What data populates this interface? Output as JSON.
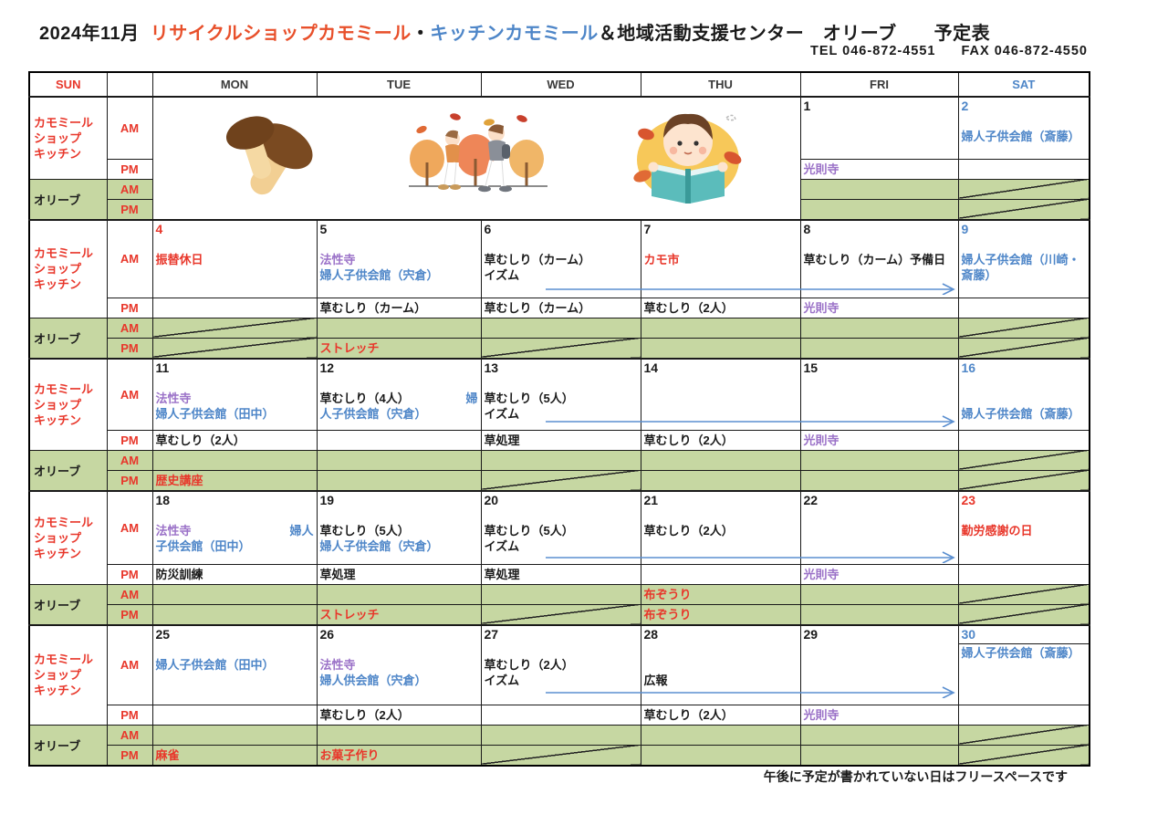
{
  "palette": {
    "red": "#e8372b",
    "orange_title": "#e8502b",
    "blue": "#4e86c8",
    "purple": "#9b72c8",
    "green_bg": "#c6d7a2",
    "arrow_blue": "#5b8fd0"
  },
  "title": {
    "month": "2024年11月",
    "shop": "リサイクルショップカモミール",
    "dot": "・",
    "kitchen": "キッチンカモミール",
    "rest": "＆地域活動支援センター　オリーブ　　予定表"
  },
  "contact": {
    "tel": "TEL 046-872-4551",
    "fax": "FAX 046-872-4550"
  },
  "header": {
    "days": [
      "SUN",
      "",
      "MON",
      "TUE",
      "WED",
      "THU",
      "FRI",
      "SAT"
    ]
  },
  "labels": {
    "camomile": [
      "カモミール",
      "ショップ",
      "キッチン"
    ],
    "olive": "オリーブ",
    "am": "AM",
    "pm": "PM"
  },
  "footer_note": "午後に予定が書かれていない日はフリースペースです",
  "illustrations": [
    "mushrooms",
    "autumn-walk",
    "reading-child"
  ],
  "weeks": [
    {
      "image_span": true,
      "arrow": false,
      "days": [
        null,
        null,
        null,
        null,
        {
          "num": "1",
          "num_c": "k",
          "am": [],
          "pm": [
            {
              "t": "光則寺",
              "c": "p"
            }
          ],
          "oam": {},
          "opm": {}
        },
        {
          "num": "2",
          "num_c": "b",
          "am": [
            [
              {
                "t": "婦人子供会館（斎藤）",
                "c": "b"
              }
            ]
          ],
          "pm": [],
          "oam": {
            "diag": true
          },
          "opm": {
            "diag": true
          }
        }
      ]
    },
    {
      "image_span": false,
      "arrow": true,
      "days": [
        {
          "num": "4",
          "num_c": "r",
          "am": [
            [
              {
                "t": "振替休日",
                "c": "r"
              }
            ]
          ],
          "pm": [],
          "oam": {
            "diag": true
          },
          "opm": {
            "diag": true
          }
        },
        {
          "num": "5",
          "num_c": "k",
          "am": [
            [
              {
                "t": "法性寺",
                "c": "p"
              }
            ],
            [
              {
                "t": "婦人子供会館（宍倉）",
                "c": "b"
              }
            ]
          ],
          "pm": [
            {
              "t": "草むしり（カーム）",
              "c": "k"
            }
          ],
          "oam": {},
          "opm": {
            "t": "ストレッチ"
          }
        },
        {
          "num": "6",
          "num_c": "k",
          "am": [
            [
              {
                "t": "草むしり（カーム）",
                "c": "k"
              }
            ],
            [
              {
                "t": "イズム",
                "c": "k"
              }
            ]
          ],
          "pm": [
            {
              "t": "草むしり（カーム）",
              "c": "k"
            }
          ],
          "oam": {},
          "opm": {
            "diag": true
          }
        },
        {
          "num": "7",
          "num_c": "k",
          "am": [
            [
              {
                "t": "カモ市",
                "c": "r"
              }
            ]
          ],
          "pm": [
            {
              "t": "草むしり（2人）",
              "c": "k"
            }
          ],
          "oam": {},
          "opm": {}
        },
        {
          "num": "8",
          "num_c": "k",
          "am": [
            [
              {
                "t": "草むしり（カーム）予備日",
                "c": "k"
              }
            ]
          ],
          "pm": [
            {
              "t": "光則寺",
              "c": "p"
            }
          ],
          "oam": {},
          "opm": {}
        },
        {
          "num": "9",
          "num_c": "b",
          "am": [
            [
              {
                "t": "婦人子供会館（川崎・斎藤）",
                "c": "b"
              }
            ]
          ],
          "pm": [],
          "oam": {
            "diag": true
          },
          "opm": {
            "diag": true
          }
        }
      ]
    },
    {
      "image_span": false,
      "arrow": true,
      "days": [
        {
          "num": "11",
          "num_c": "k",
          "am": [
            [
              {
                "t": "法性寺",
                "c": "p"
              }
            ],
            [
              {
                "t": "婦人子供会館（田中）",
                "c": "b"
              }
            ]
          ],
          "pm": [
            {
              "t": "草むしり（2人）",
              "c": "k"
            }
          ],
          "oam": {},
          "opm": {
            "t": "歴史講座"
          }
        },
        {
          "num": "12",
          "num_c": "k",
          "am": [
            [
              {
                "t": "草むしり（4人）",
                "c": "k"
              },
              {
                "t": "婦",
                "c": "b",
                "right": true
              }
            ],
            [
              {
                "t": "人子供会館（宍倉）",
                "c": "b"
              }
            ]
          ],
          "pm": [],
          "oam": {},
          "opm": {}
        },
        {
          "num": "13",
          "num_c": "k",
          "am": [
            [
              {
                "t": "草むしり（5人）",
                "c": "k"
              }
            ],
            [
              {
                "t": "イズム",
                "c": "k"
              }
            ]
          ],
          "pm": [
            {
              "t": "草処理",
              "c": "k"
            }
          ],
          "oam": {},
          "opm": {
            "diag": true
          }
        },
        {
          "num": "14",
          "num_c": "k",
          "am": [],
          "pm": [
            {
              "t": "草むしり（2人）",
              "c": "k"
            }
          ],
          "oam": {},
          "opm": {}
        },
        {
          "num": "15",
          "num_c": "k",
          "am": [],
          "pm": [
            {
              "t": "光則寺",
              "c": "p"
            }
          ],
          "oam": {},
          "opm": {}
        },
        {
          "num": "16",
          "num_c": "b",
          "am": [
            [
              {
                "t": "",
                "c": "b"
              }
            ],
            [
              {
                "t": "婦人子供会館（斎藤）",
                "c": "b"
              }
            ]
          ],
          "pm": [],
          "oam": {
            "diag": true
          },
          "opm": {
            "diag": true
          }
        }
      ]
    },
    {
      "image_span": false,
      "arrow": true,
      "days": [
        {
          "num": "18",
          "num_c": "k",
          "am": [
            [
              {
                "t": "法性寺",
                "c": "p"
              },
              {
                "t": "婦人",
                "c": "b",
                "right": true
              }
            ],
            [
              {
                "t": "子供会館（田中）",
                "c": "b"
              }
            ]
          ],
          "pm": [
            {
              "t": "防災訓練",
              "c": "k"
            }
          ],
          "oam": {},
          "opm": {}
        },
        {
          "num": "19",
          "num_c": "k",
          "am": [
            [
              {
                "t": "草むしり（5人）",
                "c": "k"
              }
            ],
            [
              {
                "t": "婦人子供会館（宍倉）",
                "c": "b"
              }
            ]
          ],
          "pm": [
            {
              "t": "草処理",
              "c": "k"
            }
          ],
          "oam": {},
          "opm": {
            "t": "ストレッチ"
          }
        },
        {
          "num": "20",
          "num_c": "k",
          "am": [
            [
              {
                "t": "草むしり（5人）",
                "c": "k"
              }
            ],
            [
              {
                "t": "イズム",
                "c": "k"
              }
            ]
          ],
          "pm": [
            {
              "t": "草処理",
              "c": "k"
            }
          ],
          "oam": {},
          "opm": {
            "diag": true
          }
        },
        {
          "num": "21",
          "num_c": "k",
          "am": [
            [
              {
                "t": "草むしり（2人）",
                "c": "k"
              }
            ]
          ],
          "pm": [],
          "oam": {
            "t": "布ぞうり"
          },
          "opm": {
            "t": "布ぞうり"
          }
        },
        {
          "num": "22",
          "num_c": "k",
          "am": [],
          "pm": [
            {
              "t": "光則寺",
              "c": "p"
            }
          ],
          "oam": {},
          "opm": {}
        },
        {
          "num": "23",
          "num_c": "r",
          "am": [
            [
              {
                "t": "勤労感謝の日",
                "c": "r"
              }
            ]
          ],
          "pm": [],
          "oam": {
            "diag": true
          },
          "opm": {
            "diag": true
          }
        }
      ]
    },
    {
      "image_span": false,
      "arrow": true,
      "days": [
        {
          "num": "25",
          "num_c": "k",
          "am": [
            [
              {
                "t": "婦人子供会館（田中）",
                "c": "b"
              }
            ]
          ],
          "pm": [],
          "oam": {},
          "opm": {
            "t": "麻雀"
          }
        },
        {
          "num": "26",
          "num_c": "k",
          "am": [
            [
              {
                "t": "法性寺",
                "c": "p"
              }
            ],
            [
              {
                "t": "婦人供会館（宍倉）",
                "c": "b"
              }
            ]
          ],
          "pm": [
            {
              "t": "草むしり（2人）",
              "c": "k"
            }
          ],
          "oam": {},
          "opm": {
            "t": "お菓子作り"
          }
        },
        {
          "num": "27",
          "num_c": "k",
          "am": [
            [
              {
                "t": "草むしり（2人）",
                "c": "k"
              }
            ],
            [
              {
                "t": "イズム",
                "c": "k"
              }
            ]
          ],
          "pm": [],
          "oam": {},
          "opm": {
            "diag": true
          }
        },
        {
          "num": "28",
          "num_c": "k",
          "am": [
            [
              {
                "t": "",
                "c": "k"
              }
            ],
            [
              {
                "t": "広報",
                "c": "k"
              }
            ]
          ],
          "pm": [
            {
              "t": "草むしり（2人）",
              "c": "k"
            }
          ],
          "oam": {},
          "opm": {}
        },
        {
          "num": "29",
          "num_c": "k",
          "am": [],
          "pm": [
            {
              "t": "光則寺",
              "c": "p"
            }
          ],
          "oam": {},
          "opm": {}
        },
        {
          "num": "30",
          "num_c": "b",
          "num_divider": true,
          "am": [
            [
              {
                "t": "婦人子供会館（斎藤）",
                "c": "b"
              }
            ]
          ],
          "pm": [],
          "oam": {
            "diag": true
          },
          "opm": {
            "diag": true
          }
        }
      ]
    }
  ]
}
